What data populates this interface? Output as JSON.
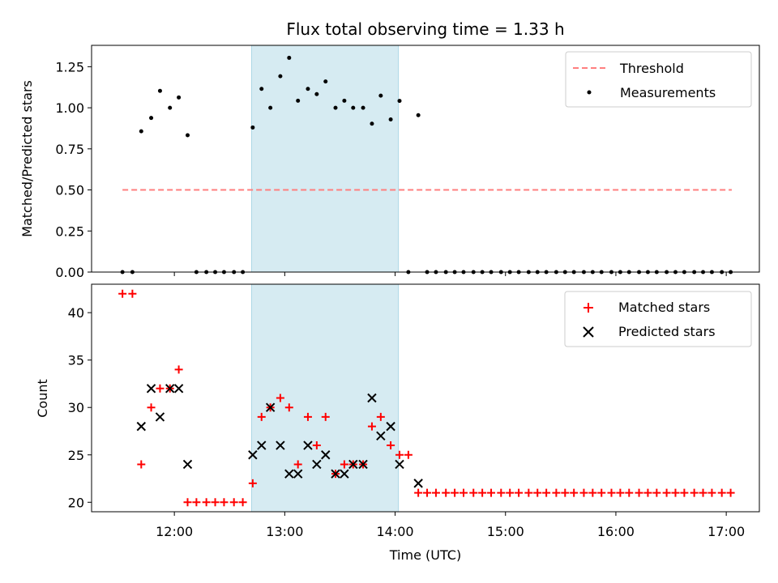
{
  "chart_data": {
    "type": "scatter",
    "title": "Flux total observing time = 1.33 h",
    "xlabel": "Time (UTC)",
    "x_unit": "hours UTC",
    "xlim": [
      11.25,
      17.3
    ],
    "x_ticks": [
      12,
      13,
      14,
      15,
      16,
      17
    ],
    "x_tick_labels": [
      "12:00",
      "13:00",
      "14:00",
      "15:00",
      "16:00",
      "17:00"
    ],
    "highlight_span": [
      12.7,
      14.03
    ],
    "highlight_color": "#add8e6",
    "top_panel": {
      "ylabel": "Matched/Predicted stars",
      "ylim": [
        0,
        1.38
      ],
      "y_ticks": [
        0.0,
        0.25,
        0.5,
        0.75,
        1.0,
        1.25
      ],
      "y_tick_labels": [
        "0.00",
        "0.25",
        "0.50",
        "0.75",
        "1.00",
        "1.25"
      ],
      "threshold": {
        "name": "Threshold",
        "value": 0.5,
        "x_range": [
          11.53,
          17.05
        ],
        "color": "#ff7f7f"
      },
      "measurements": {
        "name": "Measurements",
        "color": "#000000",
        "x": [
          11.53,
          11.62,
          11.7,
          11.79,
          11.87,
          11.96,
          12.04,
          12.12,
          12.2,
          12.29,
          12.37,
          12.45,
          12.54,
          12.62,
          12.71,
          12.79,
          12.87,
          12.96,
          13.04,
          13.12,
          13.21,
          13.29,
          13.37,
          13.46,
          13.54,
          13.62,
          13.71,
          13.79,
          13.87,
          13.96,
          14.04,
          14.12,
          14.21,
          14.29,
          14.37,
          14.46,
          14.54,
          14.62,
          14.71,
          14.79,
          14.87,
          14.96,
          15.04,
          15.12,
          15.21,
          15.29,
          15.37,
          15.46,
          15.54,
          15.62,
          15.71,
          15.79,
          15.87,
          15.96,
          16.04,
          16.12,
          16.21,
          16.29,
          16.37,
          16.46,
          16.54,
          16.62,
          16.71,
          16.79,
          16.87,
          16.96,
          17.04
        ],
        "y": [
          0,
          0,
          0.857,
          0.938,
          1.103,
          1.0,
          1.063,
          0.833,
          0,
          0,
          0,
          0,
          0,
          0,
          0.88,
          1.115,
          1.0,
          1.192,
          1.304,
          1.043,
          1.115,
          1.083,
          1.16,
          1.0,
          1.043,
          1.0,
          1.0,
          0.903,
          1.074,
          0.929,
          1.042,
          0,
          0.955,
          0,
          0,
          0,
          0,
          0,
          0,
          0,
          0,
          0,
          0,
          0,
          0,
          0,
          0,
          0,
          0,
          0,
          0,
          0,
          0,
          0,
          0,
          0,
          0,
          0,
          0,
          0,
          0,
          0,
          0,
          0,
          0,
          0,
          0
        ]
      }
    },
    "bottom_panel": {
      "ylabel": "Count",
      "ylim": [
        19,
        43
      ],
      "y_ticks": [
        20,
        25,
        30,
        35,
        40
      ],
      "y_tick_labels": [
        "20",
        "25",
        "30",
        "35",
        "40"
      ],
      "series": [
        {
          "name": "Matched stars",
          "marker": "plus",
          "color": "#ff0000",
          "x": [
            11.53,
            11.62,
            11.7,
            11.79,
            11.87,
            11.96,
            12.04,
            12.12,
            12.2,
            12.29,
            12.37,
            12.45,
            12.54,
            12.62,
            12.71,
            12.79,
            12.87,
            12.96,
            13.04,
            13.12,
            13.21,
            13.29,
            13.37,
            13.46,
            13.54,
            13.62,
            13.71,
            13.79,
            13.87,
            13.96,
            14.04,
            14.12,
            14.21,
            14.29,
            14.37,
            14.46,
            14.54,
            14.62,
            14.71,
            14.79,
            14.87,
            14.96,
            15.04,
            15.12,
            15.21,
            15.29,
            15.37,
            15.46,
            15.54,
            15.62,
            15.71,
            15.79,
            15.87,
            15.96,
            16.04,
            16.12,
            16.21,
            16.29,
            16.37,
            16.46,
            16.54,
            16.62,
            16.71,
            16.79,
            16.87,
            16.96,
            17.04
          ],
          "y": [
            42,
            42,
            24,
            30,
            32,
            32,
            34,
            20,
            20,
            20,
            20,
            20,
            20,
            20,
            22,
            29,
            30,
            31,
            30,
            24,
            29,
            26,
            29,
            23,
            24,
            24,
            24,
            28,
            29,
            26,
            25,
            25,
            21,
            21,
            21,
            21,
            21,
            21,
            21,
            21,
            21,
            21,
            21,
            21,
            21,
            21,
            21,
            21,
            21,
            21,
            21,
            21,
            21,
            21,
            21,
            21,
            21,
            21,
            21,
            21,
            21,
            21,
            21,
            21,
            21,
            21,
            21
          ]
        },
        {
          "name": "Predicted stars",
          "marker": "x",
          "color": "#000000",
          "x": [
            11.7,
            11.79,
            11.87,
            11.96,
            12.04,
            12.12,
            12.71,
            12.79,
            12.87,
            12.96,
            13.04,
            13.12,
            13.21,
            13.29,
            13.37,
            13.46,
            13.54,
            13.62,
            13.71,
            13.79,
            13.87,
            13.96,
            14.04,
            14.21
          ],
          "y": [
            28,
            32,
            29,
            32,
            32,
            24,
            25,
            26,
            30,
            26,
            23,
            23,
            26,
            24,
            25,
            23,
            23,
            24,
            24,
            31,
            27,
            28,
            24,
            22
          ]
        }
      ]
    }
  }
}
